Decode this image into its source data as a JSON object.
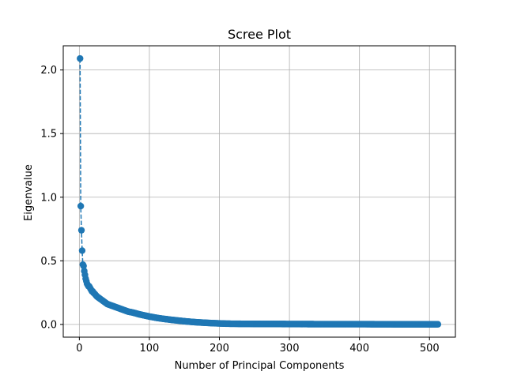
{
  "chart_data": {
    "type": "line",
    "title": "Scree Plot",
    "xlabel": "Number of Principal Components",
    "ylabel": "Eigenvalue",
    "xlim": [
      -23,
      537
    ],
    "ylim": [
      -0.1,
      2.19
    ],
    "xticks": [
      0,
      100,
      200,
      300,
      400,
      500
    ],
    "yticks": [
      0.0,
      0.5,
      1.0,
      1.5,
      2.0
    ],
    "xtick_labels": [
      "0",
      "100",
      "200",
      "300",
      "400",
      "500"
    ],
    "ytick_labels": [
      "0.0",
      "0.5",
      "1.0",
      "1.5",
      "2.0"
    ],
    "grid": true,
    "series_color": "#1f77b4",
    "line_style": "dashed",
    "marker": "circle",
    "n_components": 512,
    "series": [
      {
        "x": [
          1,
          2,
          3,
          4,
          5,
          6,
          7,
          8,
          9,
          10,
          11,
          12,
          13,
          14,
          15,
          16,
          17,
          18,
          19,
          20,
          22,
          25,
          30,
          35,
          40,
          45,
          50,
          55,
          60,
          65,
          70,
          75,
          80,
          85,
          90,
          95,
          100,
          110,
          120,
          130,
          140,
          150,
          160,
          170,
          180,
          190,
          200,
          210,
          220,
          250,
          300,
          350,
          400,
          450,
          500,
          512
        ],
        "values": [
          2.09,
          0.93,
          0.74,
          0.58,
          0.47,
          0.46,
          0.42,
          0.39,
          0.36,
          0.34,
          0.32,
          0.31,
          0.3,
          0.3,
          0.29,
          0.28,
          0.27,
          0.26,
          0.26,
          0.25,
          0.24,
          0.22,
          0.2,
          0.18,
          0.16,
          0.15,
          0.14,
          0.13,
          0.12,
          0.11,
          0.1,
          0.095,
          0.088,
          0.08,
          0.074,
          0.068,
          0.062,
          0.052,
          0.044,
          0.037,
          0.031,
          0.025,
          0.02,
          0.016,
          0.013,
          0.01,
          0.008,
          0.006,
          0.005,
          0.004,
          0.003,
          0.002,
          0.002,
          0.001,
          0.001,
          0.001
        ]
      }
    ]
  }
}
